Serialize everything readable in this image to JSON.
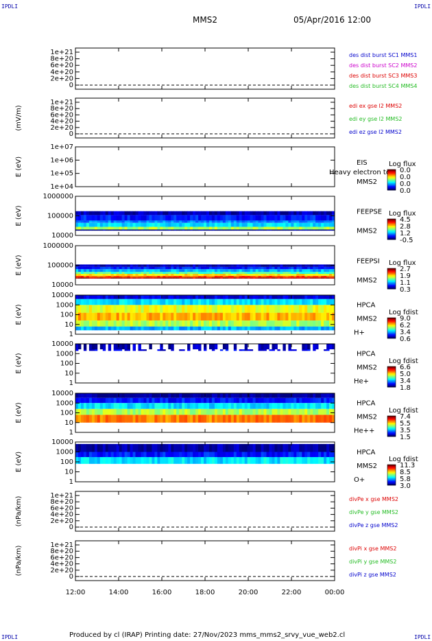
{
  "header": {
    "corner_label": "IPDLI",
    "spacecraft": "MMS2",
    "datetime": "05/Apr/2016 12:00"
  },
  "footer": {
    "text": "Produced by cl (IRAP)    Printing date: 27/Nov/2023    mms_mms2_srvy_vue_web2.cl"
  },
  "colors": {
    "blue": "#0000cc",
    "magenta": "#cc00cc",
    "red": "#dd0000",
    "green": "#22bb22"
  },
  "chart_data": [
    {
      "type": "line",
      "title": "",
      "ylabel": "",
      "yticks": [
        "0",
        "2e+20",
        "4e+20",
        "6e+20",
        "8e+20",
        "1e+21"
      ],
      "series": [
        {
          "name": "des dist burst SC1 MMS1",
          "color": "#0000cc"
        },
        {
          "name": "des dist burst SC2 MMS2",
          "color": "#cc00cc"
        },
        {
          "name": "des dist burst SC3 MMS3",
          "color": "#dd0000"
        },
        {
          "name": "des dist burst SC4 MMS4",
          "color": "#22bb22"
        }
      ]
    },
    {
      "type": "line",
      "ylabel": "(mV/m)",
      "yticks": [
        "0",
        "2e+20",
        "4e+20",
        "6e+20",
        "8e+20",
        "1e+21"
      ],
      "series": [
        {
          "name": "edi ex gse l2 MMS2",
          "color": "#dd0000"
        },
        {
          "name": "edi ey gse l2 MMS2",
          "color": "#22bb22"
        },
        {
          "name": "edi ez gse l2 MMS2",
          "color": "#0000cc"
        }
      ]
    },
    {
      "type": "heatmap",
      "ylabel": "E (eV)",
      "scale": "log",
      "yticks": [
        "1e+04",
        "1e+05",
        "1e+06",
        "1e+07"
      ],
      "instrument": [
        "EIS",
        "MMS2"
      ],
      "note": "Heavy electron to",
      "colorbar": {
        "label": "Log flux",
        "ticks": [
          "0.0",
          "0.0",
          "0.0",
          "0.0"
        ]
      }
    },
    {
      "type": "heatmap",
      "ylabel": "E (eV)",
      "scale": "log",
      "yticks": [
        "10000",
        "100000",
        "1000000"
      ],
      "instrument": [
        "FEEPSE",
        "MMS2"
      ],
      "colorbar": {
        "label": "Log flux",
        "ticks": [
          "4.5",
          "2.8",
          "1.2",
          "-0.5"
        ]
      }
    },
    {
      "type": "heatmap",
      "ylabel": "E (eV)",
      "scale": "log",
      "yticks": [
        "10000",
        "100000",
        "1000000"
      ],
      "instrument": [
        "FEEPSI",
        "MMS2"
      ],
      "colorbar": {
        "label": "Log flux",
        "ticks": [
          "2.7",
          "1.9",
          "1.1",
          "0.3"
        ]
      }
    },
    {
      "type": "heatmap",
      "ylabel": "E (eV)",
      "scale": "log",
      "yticks": [
        "1",
        "10",
        "100",
        "1000",
        "10000"
      ],
      "instrument": [
        "HPCA",
        "MMS2",
        "H+"
      ],
      "colorbar": {
        "label": "Log fdist",
        "ticks": [
          "9.0",
          "6.2",
          "3.4",
          "0.6"
        ]
      }
    },
    {
      "type": "heatmap",
      "ylabel": "E (eV)",
      "scale": "log",
      "yticks": [
        "1",
        "10",
        "100",
        "1000",
        "10000"
      ],
      "instrument": [
        "HPCA",
        "MMS2",
        "He+"
      ],
      "colorbar": {
        "label": "Log fdist",
        "ticks": [
          "6.6",
          "5.0",
          "3.4",
          "1.8"
        ]
      }
    },
    {
      "type": "heatmap",
      "ylabel": "E (eV)",
      "scale": "log",
      "yticks": [
        "1",
        "10",
        "100",
        "1000",
        "10000"
      ],
      "instrument": [
        "HPCA",
        "MMS2",
        "He++"
      ],
      "colorbar": {
        "label": "Log fdist",
        "ticks": [
          "7.4",
          "5.5",
          "3.5",
          "1.5"
        ]
      }
    },
    {
      "type": "heatmap",
      "ylabel": "E (eV)",
      "scale": "log",
      "yticks": [
        "1",
        "10",
        "100",
        "1000",
        "10000"
      ],
      "instrument": [
        "HPCA",
        "MMS2",
        "O+"
      ],
      "colorbar": {
        "label": "Log fdist",
        "ticks": [
          "11.3",
          "8.5",
          "5.8",
          "3.0"
        ]
      }
    },
    {
      "type": "line",
      "ylabel": "(nPa/km)",
      "yticks": [
        "0",
        "2e+20",
        "4e+20",
        "6e+20",
        "8e+20",
        "1e+21"
      ],
      "series": [
        {
          "name": "divPe x gse MMS2",
          "color": "#dd0000"
        },
        {
          "name": "divPe y gse MMS2",
          "color": "#22bb22"
        },
        {
          "name": "divPe z gse MMS2",
          "color": "#0000cc"
        }
      ]
    },
    {
      "type": "line",
      "ylabel": "(nPa/km)",
      "yticks": [
        "0",
        "2e+20",
        "4e+20",
        "6e+20",
        "8e+20",
        "1e+21"
      ],
      "series": [
        {
          "name": "divPi x gse MMS2",
          "color": "#dd0000"
        },
        {
          "name": "divPi y gse MMS2",
          "color": "#22bb22"
        },
        {
          "name": "divPi z gse MMS2",
          "color": "#0000cc"
        }
      ]
    }
  ],
  "time_axis": {
    "ticks": [
      "12:00",
      "14:00",
      "16:00",
      "18:00",
      "20:00",
      "22:00",
      "00:00"
    ]
  }
}
